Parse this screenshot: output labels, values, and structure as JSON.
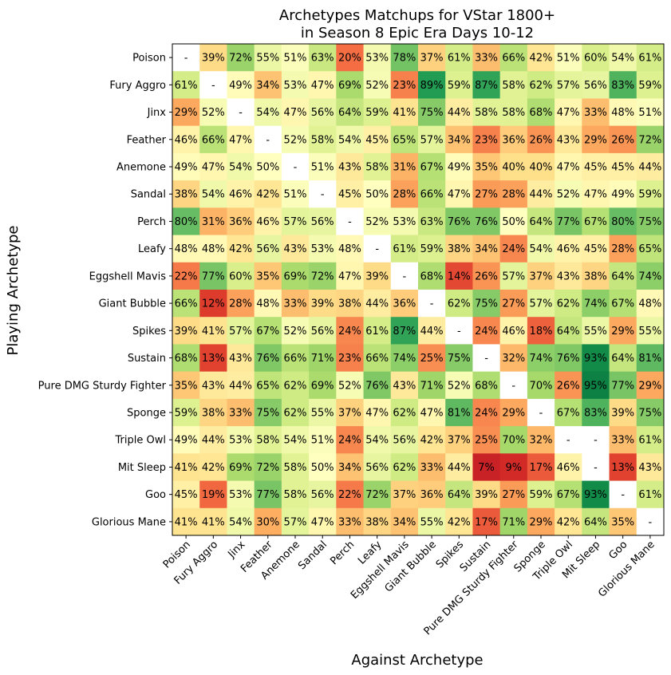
{
  "chart_data": {
    "type": "heatmap",
    "title": "Archetypes Matchups for VStar 1800+",
    "subtitle": "in Season 8 Epic Era Days 10-12",
    "xlabel": "Against Archetype",
    "ylabel": "Playing Archetype",
    "colormap": "RdYlGn",
    "value_range": [
      0,
      100
    ],
    "missing_label": "-",
    "rows": [
      "Poison",
      "Fury Aggro",
      "Jinx",
      "Feather",
      "Anemone",
      "Sandal",
      "Perch",
      "Leafy",
      "Eggshell Mavis",
      "Giant Bubble",
      "Spikes",
      "Sustain",
      "Pure DMG Sturdy Fighter",
      "Sponge",
      "Triple Owl",
      "Mit Sleep",
      "Goo",
      "Glorious Mane"
    ],
    "columns": [
      "Poison",
      "Fury Aggro",
      "Jinx",
      "Feather",
      "Anemone",
      "Sandal",
      "Perch",
      "Leafy",
      "Eggshell Mavis",
      "Giant Bubble",
      "Spikes",
      "Sustain",
      "Pure DMG Sturdy Fighter",
      "Sponge",
      "Triple Owl",
      "Mit Sleep",
      "Goo",
      "Glorious Mane"
    ],
    "values": [
      [
        null,
        39,
        72,
        55,
        51,
        63,
        20,
        53,
        78,
        37,
        61,
        33,
        66,
        42,
        51,
        60,
        54,
        61
      ],
      [
        61,
        null,
        49,
        34,
        53,
        47,
        69,
        52,
        23,
        89,
        59,
        87,
        58,
        62,
        57,
        56,
        83,
        59
      ],
      [
        29,
        52,
        null,
        54,
        47,
        56,
        64,
        59,
        41,
        75,
        44,
        58,
        58,
        68,
        47,
        33,
        48,
        51
      ],
      [
        46,
        66,
        47,
        null,
        52,
        58,
        54,
        45,
        65,
        57,
        34,
        23,
        36,
        26,
        43,
        29,
        26,
        72
      ],
      [
        49,
        47,
        54,
        50,
        null,
        51,
        43,
        58,
        31,
        67,
        49,
        35,
        40,
        40,
        47,
        45,
        45,
        44
      ],
      [
        38,
        54,
        46,
        42,
        51,
        null,
        45,
        50,
        28,
        66,
        47,
        27,
        28,
        44,
        52,
        47,
        49,
        59
      ],
      [
        80,
        31,
        36,
        46,
        57,
        56,
        null,
        52,
        53,
        63,
        76,
        76,
        50,
        64,
        77,
        67,
        80,
        75
      ],
      [
        48,
        48,
        42,
        56,
        43,
        53,
        48,
        null,
        61,
        59,
        38,
        34,
        24,
        54,
        46,
        45,
        28,
        65
      ],
      [
        22,
        77,
        60,
        35,
        69,
        72,
        47,
        39,
        null,
        68,
        14,
        26,
        57,
        37,
        43,
        38,
        64,
        74
      ],
      [
        66,
        12,
        28,
        48,
        33,
        39,
        38,
        44,
        36,
        null,
        62,
        75,
        27,
        57,
        62,
        74,
        67,
        48
      ],
      [
        39,
        41,
        57,
        67,
        52,
        56,
        24,
        61,
        87,
        44,
        null,
        24,
        46,
        18,
        64,
        55,
        29,
        55
      ],
      [
        68,
        13,
        43,
        76,
        66,
        71,
        23,
        66,
        74,
        25,
        75,
        null,
        32,
        74,
        76,
        93,
        64,
        81
      ],
      [
        35,
        43,
        44,
        65,
        62,
        69,
        52,
        76,
        43,
        71,
        52,
        68,
        null,
        70,
        26,
        95,
        77,
        29
      ],
      [
        59,
        38,
        33,
        75,
        62,
        55,
        37,
        47,
        62,
        47,
        81,
        24,
        29,
        null,
        67,
        83,
        39,
        75
      ],
      [
        49,
        44,
        53,
        58,
        54,
        51,
        24,
        54,
        56,
        42,
        37,
        25,
        70,
        32,
        null,
        null,
        33,
        61
      ],
      [
        41,
        42,
        69,
        72,
        58,
        50,
        34,
        56,
        62,
        33,
        44,
        7,
        9,
        17,
        46,
        null,
        13,
        43
      ],
      [
        45,
        19,
        53,
        77,
        58,
        56,
        22,
        72,
        37,
        36,
        64,
        39,
        27,
        59,
        67,
        93,
        null,
        61
      ],
      [
        41,
        41,
        54,
        30,
        57,
        47,
        33,
        38,
        34,
        55,
        42,
        17,
        71,
        29,
        42,
        64,
        35,
        null
      ]
    ]
  }
}
